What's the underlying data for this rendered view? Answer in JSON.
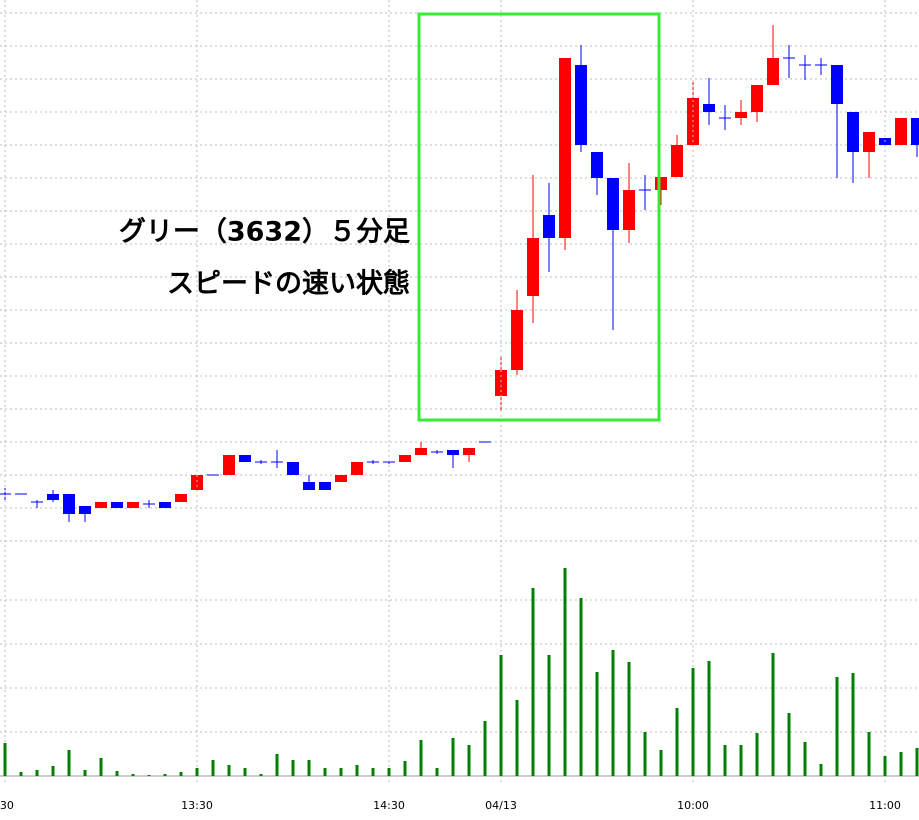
{
  "chart_data": [
    {
      "type": "candlestick",
      "open": [
        47,
        47,
        39,
        47,
        47,
        35,
        33,
        39,
        33,
        37,
        39,
        39,
        51,
        66,
        66,
        86,
        79,
        79,
        79,
        59,
        59,
        59,
        66,
        79,
        79,
        79,
        86,
        89,
        91,
        86,
        99,
        145,
        171,
        245,
        326,
        303,
        476,
        389,
        363,
        311,
        351,
        351,
        364,
        396,
        437,
        423,
        423,
        429,
        456,
        483,
        476,
        476,
        476,
        429,
        389,
        403,
        396,
        423
      ],
      "high": [
        53,
        47,
        41,
        51,
        47,
        35,
        39,
        39,
        39,
        41,
        39,
        47,
        66,
        66,
        86,
        86,
        81,
        91,
        79,
        66,
        59,
        66,
        79,
        81,
        81,
        86,
        99,
        91,
        91,
        93,
        99,
        186,
        251,
        366,
        358,
        483,
        496,
        389,
        363,
        378,
        366,
        364,
        406,
        461,
        463,
        436,
        441,
        456,
        516,
        496,
        486,
        483,
        476,
        429,
        409,
        403,
        423,
        423
      ],
      "low": [
        41,
        47,
        33,
        39,
        19,
        19,
        33,
        33,
        33,
        33,
        33,
        39,
        51,
        66,
        66,
        79,
        77,
        73,
        66,
        51,
        51,
        59,
        66,
        77,
        77,
        79,
        86,
        87,
        73,
        79,
        99,
        131,
        166,
        218,
        269,
        291,
        389,
        346,
        211,
        298,
        331,
        336,
        364,
        396,
        416,
        411,
        416,
        419,
        456,
        463,
        461,
        466,
        363,
        358,
        363,
        396,
        396,
        384
      ],
      "close": [
        47,
        47,
        39,
        41,
        27,
        27,
        39,
        33,
        39,
        37,
        33,
        47,
        66,
        66,
        86,
        79,
        79,
        79,
        66,
        51,
        51,
        66,
        79,
        79,
        79,
        86,
        93,
        89,
        86,
        93,
        99,
        171,
        231,
        303,
        303,
        483,
        396,
        363,
        311,
        351,
        351,
        364,
        396,
        443,
        429,
        423,
        429,
        456,
        483,
        483,
        476,
        476,
        437,
        389,
        409,
        396,
        423,
        396
      ],
      "up_color": "#ff0000",
      "down_color": "#0000ff",
      "ylim": [
        0,
        541
      ],
      "yticks": [
        0,
        33,
        66,
        99,
        132,
        165,
        198,
        231,
        264,
        297,
        330,
        363,
        396,
        429,
        462,
        495,
        528
      ],
      "grid": true,
      "annotations": [
        "グリー（3632）５分足",
        "スピードの速い状態"
      ]
    },
    {
      "type": "bar",
      "categories": [
        ":30",
        null,
        null,
        null,
        null,
        null,
        null,
        null,
        null,
        null,
        null,
        null,
        "13:30",
        null,
        null,
        null,
        null,
        null,
        null,
        null,
        null,
        null,
        null,
        null,
        "14:30",
        null,
        null,
        null,
        null,
        null,
        null,
        "04/13",
        null,
        null,
        null,
        null,
        null,
        null,
        null,
        null,
        null,
        null,
        null,
        "10:00",
        null,
        null,
        null,
        null,
        null,
        null,
        null,
        null,
        null,
        null,
        null,
        "11:00",
        null,
        null
      ],
      "values": [
        33,
        4,
        6,
        10,
        26,
        6,
        18,
        5,
        2,
        1,
        2,
        4,
        8,
        16,
        11,
        8,
        2,
        22,
        16,
        16,
        8,
        8,
        11,
        8,
        8,
        15,
        36,
        8,
        38,
        31,
        55,
        121,
        76,
        188,
        121,
        208,
        178,
        104,
        126,
        114,
        44,
        26,
        68,
        108,
        115,
        31,
        31,
        43,
        123,
        63,
        34,
        12,
        99,
        103,
        44,
        20,
        24,
        28
      ],
      "color": "#008000",
      "ylim": [
        0,
        236
      ],
      "yticks": [
        0,
        44,
        88,
        132,
        176
      ],
      "grid": true
    }
  ]
}
